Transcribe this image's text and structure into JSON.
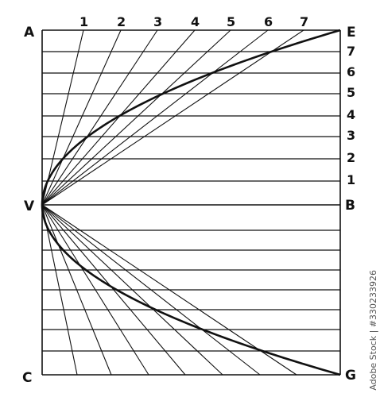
{
  "labels": {
    "A": "A",
    "E": "E",
    "V": "V",
    "B": "B",
    "C": "C",
    "G": "G"
  },
  "top_numbers": [
    "1",
    "2",
    "3",
    "4",
    "5",
    "6",
    "7"
  ],
  "right_numbers": [
    "7",
    "6",
    "5",
    "4",
    "3",
    "2",
    "1"
  ],
  "watermark": "Adobe Stock | #330233926",
  "colors": {
    "ink": "#111111",
    "background": "#ffffff"
  }
}
